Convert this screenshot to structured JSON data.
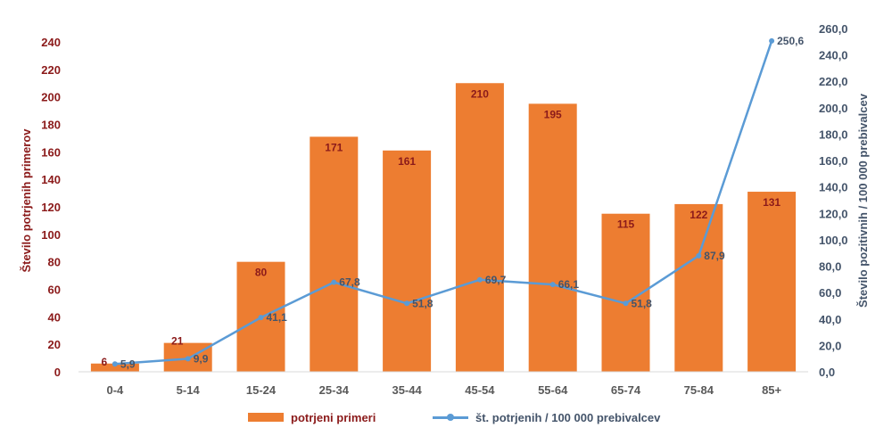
{
  "chart_data": {
    "type": "bar",
    "categories": [
      "0-4",
      "5-14",
      "15-24",
      "25-34",
      "35-44",
      "45-54",
      "55-64",
      "65-74",
      "75-84",
      "85+"
    ],
    "series": [
      {
        "name": "potrjeni primeri",
        "type": "bar",
        "axis": "left",
        "color": "#ed7d31",
        "values": [
          6,
          21,
          80,
          171,
          161,
          210,
          195,
          115,
          122,
          131
        ],
        "labels": [
          "6",
          "21",
          "80",
          "171",
          "161",
          "210",
          "195",
          "115",
          "122",
          "131"
        ]
      },
      {
        "name": "št. potrjenih / 100 000 prebivalcev",
        "type": "line",
        "axis": "right",
        "color": "#5b9bd5",
        "values": [
          5.9,
          9.9,
          41.1,
          67.8,
          51.8,
          69.7,
          66.1,
          51.8,
          87.9,
          250.6
        ],
        "labels": [
          "5,9",
          "9,9",
          "41,1",
          "67,8",
          "51,8",
          "69,7",
          "66,1",
          "51,8",
          "87,9",
          "250,6"
        ]
      }
    ],
    "y_left": {
      "label": "Število potrjenih primerov",
      "ylim": [
        0,
        240
      ],
      "ticks": [
        "0",
        "20",
        "40",
        "60",
        "80",
        "100",
        "120",
        "140",
        "160",
        "180",
        "200",
        "220",
        "240"
      ],
      "color": "#8b1a1a"
    },
    "y_right": {
      "label": "Število pozitivnih / 100 000 prebivalcev",
      "ylim": [
        0,
        260
      ],
      "ticks": [
        "0,0",
        "20,0",
        "40,0",
        "60,0",
        "80,0",
        "100,0",
        "120,0",
        "140,0",
        "160,0",
        "180,0",
        "200,0",
        "220,0",
        "240,0",
        "260,0"
      ],
      "color": "#44546a"
    },
    "x_tick_color": "#595959",
    "grid": false,
    "legend_position": "bottom"
  }
}
